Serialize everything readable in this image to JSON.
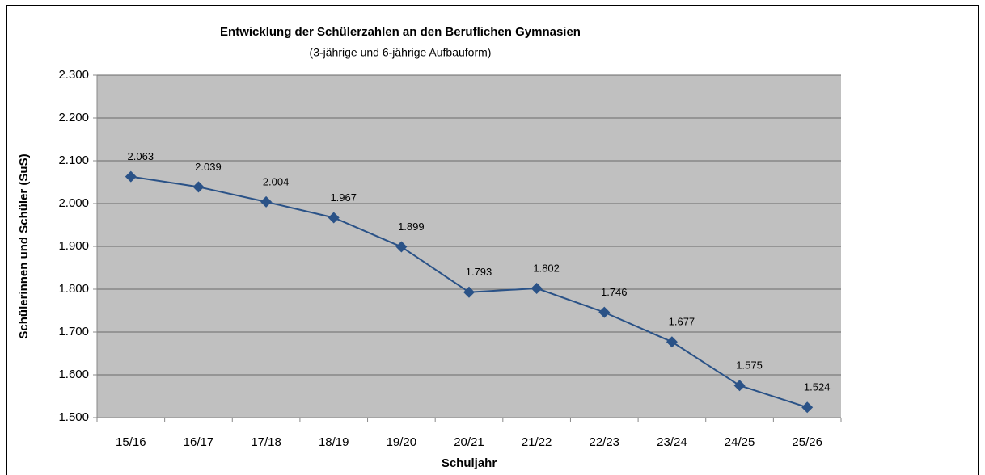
{
  "chart_data": {
    "type": "line",
    "title": "Entwicklung der Schülerzahlen an den Beruflichen Gymnasien",
    "subtitle": "(3-jährige und 6-jährige Aufbauform)",
    "x_label": "Schuljahr",
    "y_label": "Schülerinnen und Schüler (SuS)",
    "categories": [
      "15/16",
      "16/17",
      "17/18",
      "18/19",
      "19/20",
      "20/21",
      "21/22",
      "22/23",
      "23/24",
      "24/25",
      "25/26"
    ],
    "values": [
      2063,
      2039,
      2004,
      1967,
      1899,
      1793,
      1802,
      1746,
      1677,
      1575,
      1524
    ],
    "value_labels": [
      "2.063",
      "2.039",
      "2.004",
      "1.967",
      "1.899",
      "1.793",
      "1.802",
      "1.746",
      "1.677",
      "1.575",
      "1.524"
    ],
    "color": "#2a5287",
    "ylim": [
      1500,
      2300
    ],
    "yticks": [
      {
        "value": 1500,
        "label": "1.500"
      },
      {
        "value": 1600,
        "label": "1.600"
      },
      {
        "value": 1700,
        "label": "1.700"
      },
      {
        "value": 1800,
        "label": "1.800"
      },
      {
        "value": 1900,
        "label": "1.900"
      },
      {
        "value": 2000,
        "label": "2.000"
      },
      {
        "value": 2100,
        "label": "2.100"
      },
      {
        "value": 2200,
        "label": "2.200"
      },
      {
        "value": 2300,
        "label": "2.300"
      }
    ],
    "grid": true
  }
}
